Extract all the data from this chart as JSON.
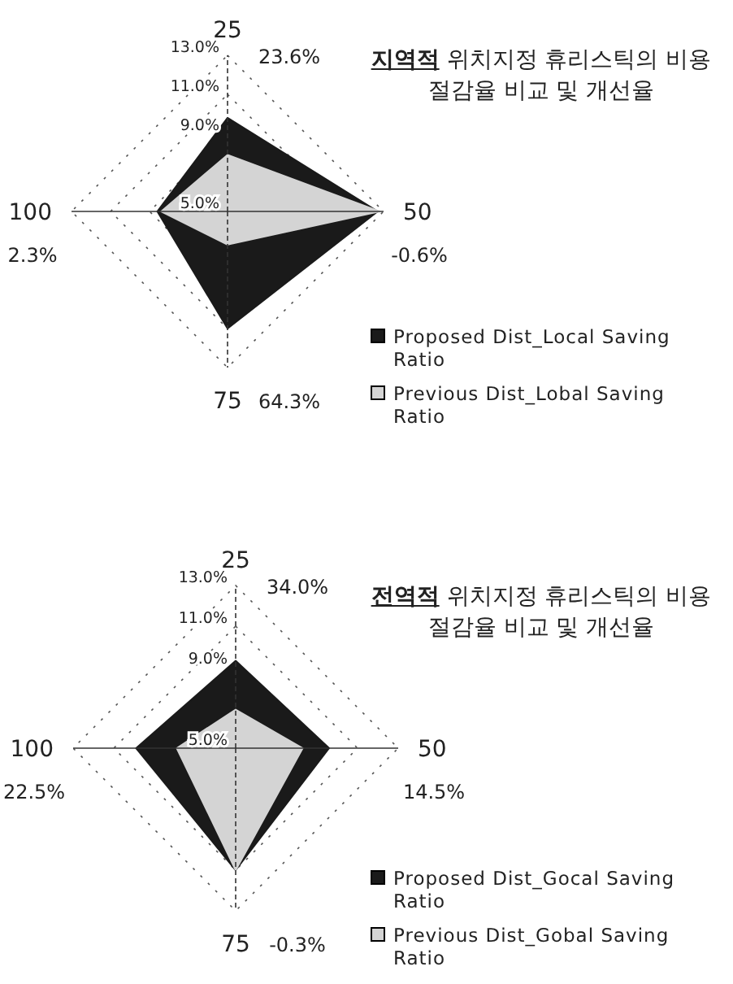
{
  "chart_data": [
    {
      "type": "radar",
      "title": "**지역적** 위치지정 휴리스틱의 비용 절감율 비교 및 개선율",
      "categories": [
        "25",
        "50",
        "75",
        "100"
      ],
      "ylim": [
        5,
        13
      ],
      "yticks": [
        {
          "value": 5,
          "label": "5.0%"
        },
        {
          "value": 9,
          "label": "9.0%"
        },
        {
          "value": 11,
          "label": "11.0%"
        },
        {
          "value": 13,
          "label": "13.0%"
        }
      ],
      "grid": true,
      "legend": "bottom right",
      "annotations": [
        "23.6%",
        "-0.6%",
        "64.3%",
        "2.3%"
      ],
      "series": [
        {
          "name": "Proposed Dist_Local Saving Ratio",
          "color": "#1a1a1a",
          "values": [
            9.8,
            12.7,
            11.0,
            8.6
          ]
        },
        {
          "name": "Previous Dist_Lobal Saving Ratio",
          "color": "#d4d4d4",
          "values": [
            7.9,
            12.8,
            6.7,
            8.4
          ]
        }
      ]
    },
    {
      "type": "radar",
      "title": "**전역적** 위치지정 휴리스틱의 비용 절감율 비교 및 개선율",
      "categories": [
        "25",
        "50",
        "75",
        "100"
      ],
      "ylim": [
        5,
        13
      ],
      "yticks": [
        {
          "value": 5,
          "label": "5.0%"
        },
        {
          "value": 9,
          "label": "9.0%"
        },
        {
          "value": 11,
          "label": "11.0%"
        },
        {
          "value": 13,
          "label": "13.0%"
        }
      ],
      "grid": true,
      "legend": "bottom right",
      "annotations": [
        "34.0%",
        "14.5%",
        "-0.3%",
        "22.5%"
      ],
      "series": [
        {
          "name": "Proposed Dist_Gocal Saving Ratio",
          "color": "#1a1a1a",
          "values": [
            9.3,
            9.6,
            11.0,
            9.9
          ]
        },
        {
          "name": "Previous Dist_Gobal Saving Ratio",
          "color": "#d4d4d4",
          "values": [
            6.9,
            8.3,
            11.0,
            7.9
          ]
        }
      ]
    }
  ]
}
